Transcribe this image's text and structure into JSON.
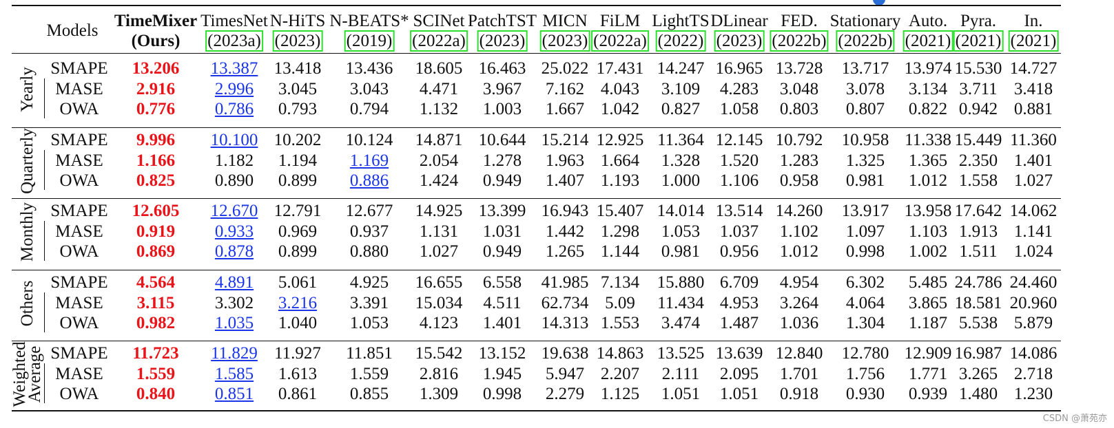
{
  "table": {
    "corner": "Models",
    "columns": [
      {
        "name": "TimeMixer",
        "year": "(Ours)"
      },
      {
        "name": "TimesNet",
        "year": "(2023a)"
      },
      {
        "name": "N-HiTS",
        "year": "(2023)"
      },
      {
        "name": "N-BEATS*",
        "year": "(2019)"
      },
      {
        "name": "SCINet",
        "year": "(2022a)"
      },
      {
        "name": "PatchTST",
        "year": "(2023)"
      },
      {
        "name": "MICN",
        "year": "(2023)"
      },
      {
        "name": "FiLM",
        "year": "(2022a)"
      },
      {
        "name": "LightTS",
        "year": "(2022)"
      },
      {
        "name": "DLinear",
        "year": "(2023)"
      },
      {
        "name": "FED.",
        "year": "(2022b)"
      },
      {
        "name": "Stationary",
        "year": "(2022b)"
      },
      {
        "name": "Auto.",
        "year": "(2021)"
      },
      {
        "name": "Pyra.",
        "year": "(2021)"
      },
      {
        "name": "In.",
        "year": "(2021)"
      }
    ],
    "groups": [
      {
        "label": "Yearly",
        "rows": [
          {
            "metric": "SMAPE",
            "second_best": 1,
            "values": [
              "13.206",
              "13.387",
              "13.418",
              "13.436",
              "18.605",
              "16.463",
              "25.022",
              "17.431",
              "14.247",
              "16.965",
              "13.728",
              "13.717",
              "13.974",
              "15.530",
              "14.727"
            ]
          },
          {
            "metric": "MASE",
            "second_best": 1,
            "values": [
              "2.916",
              "2.996",
              "3.045",
              "3.043",
              "4.471",
              "3.967",
              "7.162",
              "4.043",
              "3.109",
              "4.283",
              "3.048",
              "3.078",
              "3.134",
              "3.711",
              "3.418"
            ]
          },
          {
            "metric": "OWA",
            "second_best": 1,
            "values": [
              "0.776",
              "0.786",
              "0.793",
              "0.794",
              "1.132",
              "1.003",
              "1.667",
              "1.042",
              "0.827",
              "1.058",
              "0.803",
              "0.807",
              "0.822",
              "0.942",
              "0.881"
            ]
          }
        ]
      },
      {
        "label": "Quarterly",
        "rows": [
          {
            "metric": "SMAPE",
            "second_best": 1,
            "values": [
              "9.996",
              "10.100",
              "10.202",
              "10.124",
              "14.871",
              "10.644",
              "15.214",
              "12.925",
              "11.364",
              "12.145",
              "10.792",
              "10.958",
              "11.338",
              "15.449",
              "11.360"
            ]
          },
          {
            "metric": "MASE",
            "second_best": 3,
            "values": [
              "1.166",
              "1.182",
              "1.194",
              "1.169",
              "2.054",
              "1.278",
              "1.963",
              "1.664",
              "1.328",
              "1.520",
              "1.283",
              "1.325",
              "1.365",
              "2.350",
              "1.401"
            ]
          },
          {
            "metric": "OWA",
            "second_best": 3,
            "values": [
              "0.825",
              "0.890",
              "0.899",
              "0.886",
              "1.424",
              "0.949",
              "1.407",
              "1.193",
              "1.000",
              "1.106",
              "0.958",
              "0.981",
              "1.012",
              "1.558",
              "1.027"
            ]
          }
        ]
      },
      {
        "label": "Monthly",
        "rows": [
          {
            "metric": "SMAPE",
            "second_best": 1,
            "values": [
              "12.605",
              "12.670",
              "12.791",
              "12.677",
              "14.925",
              "13.399",
              "16.943",
              "15.407",
              "14.014",
              "13.514",
              "14.260",
              "13.917",
              "13.958",
              "17.642",
              "14.062"
            ]
          },
          {
            "metric": "MASE",
            "second_best": 1,
            "values": [
              "0.919",
              "0.933",
              "0.969",
              "0.937",
              "1.131",
              "1.031",
              "1.442",
              "1.298",
              "1.053",
              "1.037",
              "1.102",
              "1.097",
              "1.103",
              "1.913",
              "1.141"
            ]
          },
          {
            "metric": "OWA",
            "second_best": 1,
            "values": [
              "0.869",
              "0.878",
              "0.899",
              "0.880",
              "1.027",
              "0.949",
              "1.265",
              "1.144",
              "0.981",
              "0.956",
              "1.012",
              "0.998",
              "1.002",
              "1.511",
              "1.024"
            ]
          }
        ]
      },
      {
        "label": "Others",
        "rows": [
          {
            "metric": "SMAPE",
            "second_best": 1,
            "values": [
              "4.564",
              "4.891",
              "5.061",
              "4.925",
              "16.655",
              "6.558",
              "41.985",
              "7.134",
              "15.880",
              "6.709",
              "4.954",
              "6.302",
              "5.485",
              "24.786",
              "24.460"
            ]
          },
          {
            "metric": "MASE",
            "second_best": 2,
            "values": [
              "3.115",
              "3.302",
              "3.216",
              "3.391",
              "15.034",
              "4.511",
              "62.734",
              "5.09",
              "11.434",
              "4.953",
              "3.264",
              "4.064",
              "3.865",
              "18.581",
              "20.960"
            ]
          },
          {
            "metric": "OWA",
            "second_best": 1,
            "values": [
              "0.982",
              "1.035",
              "1.040",
              "1.053",
              "4.123",
              "1.401",
              "14.313",
              "1.553",
              "3.474",
              "1.487",
              "1.036",
              "1.304",
              "1.187",
              "5.538",
              "5.879"
            ]
          }
        ]
      },
      {
        "label": "Weighted Average",
        "rows": [
          {
            "metric": "SMAPE",
            "second_best": 1,
            "values": [
              "11.723",
              "11.829",
              "11.927",
              "11.851",
              "15.542",
              "13.152",
              "19.638",
              "14.863",
              "13.525",
              "13.639",
              "12.840",
              "12.780",
              "12.909",
              "16.987",
              "14.086"
            ]
          },
          {
            "metric": "MASE",
            "second_best": 1,
            "values": [
              "1.559",
              "1.585",
              "1.613",
              "1.559",
              "2.816",
              "1.945",
              "5.947",
              "2.207",
              "2.111",
              "2.095",
              "1.701",
              "1.756",
              "1.771",
              "3.265",
              "2.718"
            ]
          },
          {
            "metric": "OWA",
            "second_best": 1,
            "values": [
              "0.840",
              "0.851",
              "0.861",
              "0.855",
              "1.309",
              "0.998",
              "2.279",
              "1.125",
              "1.051",
              "1.051",
              "0.918",
              "0.930",
              "0.939",
              "1.480",
              "1.230"
            ]
          }
        ]
      }
    ]
  },
  "watermark": "CSDN @萧苑亦"
}
